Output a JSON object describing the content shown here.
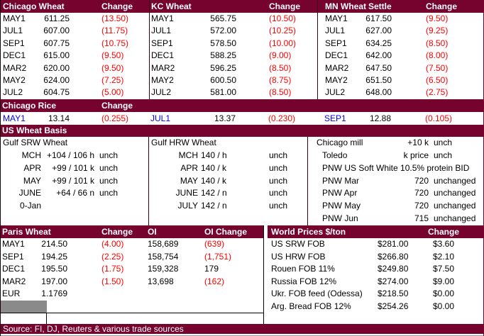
{
  "colors": {
    "maroon": "#75032e",
    "negative_red": "#ff0000",
    "rice_contract_blue": "#0000ff",
    "gray_box": "#8a8a8a"
  },
  "futures": {
    "panels": [
      {
        "title": "Chicago Wheat",
        "settle_label": "",
        "change_label": "Change",
        "rows": [
          [
            "MAY1",
            "611.25",
            "(13.50)"
          ],
          [
            "JUL1",
            "607.00",
            "(11.75)"
          ],
          [
            "SEP1",
            "607.75",
            "(10.75)"
          ],
          [
            "DEC1",
            "615.00",
            "(9.50)"
          ],
          [
            "MAR2",
            "620.00",
            "(9.50)"
          ],
          [
            "MAY2",
            "624.00",
            "(7.25)"
          ],
          [
            "JUL2",
            "604.75",
            "(5.00)"
          ]
        ]
      },
      {
        "title": "KC Wheat",
        "settle_label": "",
        "change_label": "Change",
        "rows": [
          [
            "MAY1",
            "565.75",
            "(10.50)"
          ],
          [
            "JUL1",
            "572.00",
            "(10.25)"
          ],
          [
            "SEP1",
            "578.50",
            "(10.00)"
          ],
          [
            "DEC1",
            "588.25",
            "(9.00)"
          ],
          [
            "MAR2",
            "596.25",
            "(8.50)"
          ],
          [
            "MAY2",
            "600.50",
            "(8.75)"
          ],
          [
            "JUL2",
            "581.00",
            "(8.50)"
          ]
        ]
      },
      {
        "title": "MN Wheat",
        "settle_label": "Settle",
        "change_label": "Change",
        "rows": [
          [
            "MAY1",
            "617.50",
            "(9.50)"
          ],
          [
            "JUL1",
            "627.00",
            "(9.25)"
          ],
          [
            "SEP1",
            "634.25",
            "(8.50)"
          ],
          [
            "DEC1",
            "642.00",
            "(8.00)"
          ],
          [
            "MAR2",
            "647.50",
            "(7.50)"
          ],
          [
            "MAY2",
            "651.50",
            "(6.50)"
          ],
          [
            "JUL2",
            "648.00",
            "(2.75)"
          ]
        ]
      }
    ]
  },
  "rice": {
    "title": "Chicago Rice",
    "change_label": "Change",
    "entries": [
      {
        "c": "MAY1",
        "v": "13.14",
        "chg": "(0.255)"
      },
      {
        "c": "JUL1",
        "v": "13.37",
        "chg": "(0.230)"
      },
      {
        "c": "SEP1",
        "v": "12.88",
        "chg": "(0.105)"
      }
    ]
  },
  "basis": {
    "title": "US Wheat Basis",
    "left": {
      "title": "Gulf SRW Wheat",
      "rows": [
        [
          "MCH",
          "+104 / 106 h",
          "unch"
        ],
        [
          "APR",
          "+99 / 101 k",
          "unch"
        ],
        [
          "MAY",
          "+99 / 101 k",
          "unch"
        ],
        [
          "JUNE",
          "+64 / 66 n",
          "unch"
        ],
        [
          "0-Jan",
          "",
          ""
        ]
      ]
    },
    "mid": {
      "title": "Gulf HRW Wheat",
      "rows": [
        [
          "MCH",
          "140 / h",
          "unch"
        ],
        [
          "APR",
          "140 / k",
          "unch"
        ],
        [
          "MAY",
          "140 / k",
          "unch"
        ],
        [
          "JUNE",
          "142 / n",
          "unch"
        ],
        [
          "JULY",
          "142 / n",
          "unch"
        ]
      ]
    },
    "right": {
      "rows": [
        [
          "Chicago mill",
          "+10 k",
          "unch"
        ],
        [
          "Toledo",
          "k price",
          "unch"
        ],
        [
          "PNW US Soft White 10.5% protein BID",
          "",
          ""
        ],
        [
          "PNW Mar",
          "720",
          "unchanged"
        ],
        [
          "PNW Apr",
          "720",
          "unchanged"
        ],
        [
          "PNW May",
          "720",
          "unchanged"
        ],
        [
          "PNW Jun",
          "715",
          "unchanged"
        ]
      ]
    }
  },
  "paris": {
    "title": "Paris Wheat",
    "change_label": "Change",
    "oi_label": "OI",
    "oi_change_label": "OI Change",
    "rows": [
      [
        "MAY1",
        "214.50",
        "(4.00)",
        "158,689",
        "(639)"
      ],
      [
        "SEP1",
        "194.25",
        "(2.25)",
        "158,754",
        "(1,751)"
      ],
      [
        "DEC1",
        "195.50",
        "(1.75)",
        "159,328",
        "179"
      ],
      [
        "MAR2",
        "197.00",
        "(1.50)",
        "13,698",
        "(162)"
      ],
      [
        "EUR",
        "1.1769",
        "",
        "",
        ""
      ]
    ]
  },
  "world": {
    "title": "World Prices $/ton",
    "change_label": "Change",
    "rows": [
      [
        "US SRW FOB",
        "$281.00",
        "$3.60"
      ],
      [
        "US HRW FOB",
        "$266.80",
        "$2.10"
      ],
      [
        "Rouen FOB 11%",
        "$249.80",
        "$7.50"
      ],
      [
        "Russia FOB 12%",
        "$274.00",
        "$9.00"
      ],
      [
        "Ukr. FOB feed (Odessa)",
        "$218.50",
        "$0.00"
      ],
      [
        "Arg. Bread FOB 12%",
        "$254.26",
        "$0.00"
      ]
    ]
  },
  "source": "Source: FI, DJ, Reuters & various trade sources"
}
